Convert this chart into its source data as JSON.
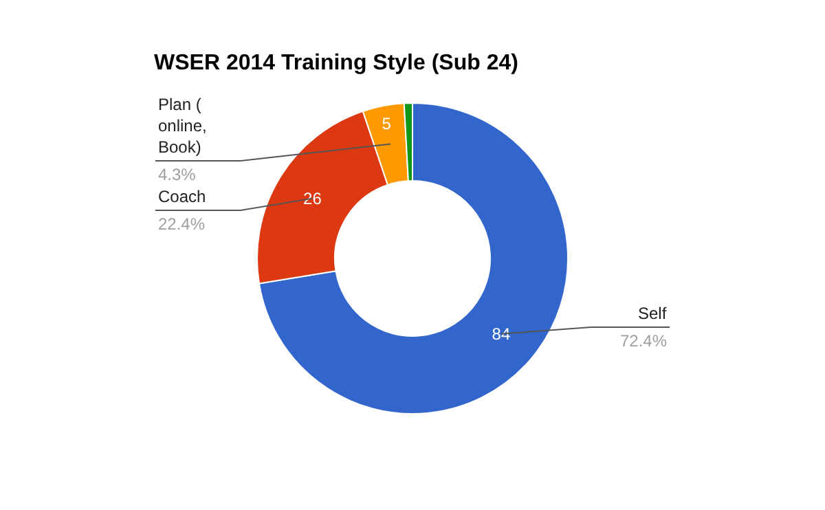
{
  "chart_data": {
    "type": "donut",
    "title": "WSER 2014 Training Style (Sub 24)",
    "categories": [
      "Self",
      "Coach",
      "Plan ( online, Book)",
      null
    ],
    "values": [
      84,
      26,
      5,
      1
    ],
    "colors": [
      "#3366cc",
      "#dc3912",
      "#ff9900",
      "#109618"
    ],
    "value_labels": [
      "84",
      "26",
      "5",
      null
    ],
    "annotations": [
      "72.4%",
      "22.4%",
      "4.3%"
    ],
    "legend": false
  }
}
